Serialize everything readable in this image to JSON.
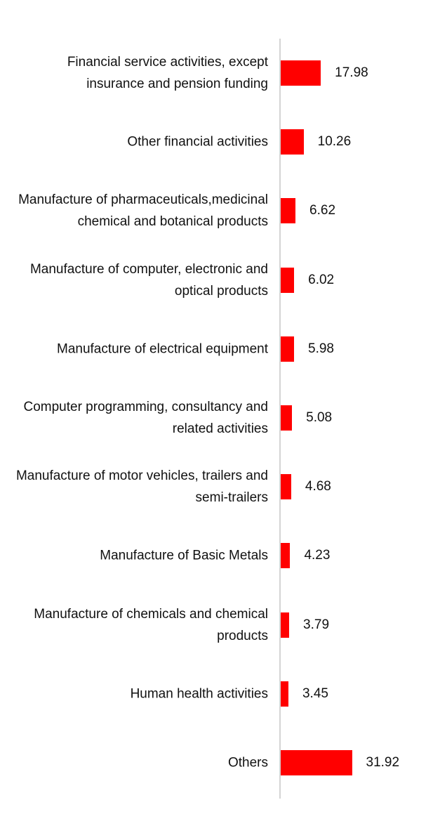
{
  "chart_data": {
    "type": "bar",
    "orientation": "horizontal",
    "title": "",
    "xlabel": "",
    "ylabel": "",
    "grid": false,
    "legend": "none",
    "bar_color": "#ff0000",
    "xlim": [
      0,
      35
    ],
    "categories": [
      "Financial service activities, except insurance and pension funding",
      "Other financial activities",
      "Manufacture of pharmaceuticals,medicinal chemical and botanical products",
      "Manufacture of computer, electronic and optical products",
      "Manufacture of electrical equipment",
      "Computer programming, consultancy and related activities",
      "Manufacture of motor vehicles, trailers and semi-trailers",
      "Manufacture of Basic Metals",
      "Manufacture of chemicals and chemical products",
      "Human health activities",
      "Others"
    ],
    "values": [
      17.98,
      10.26,
      6.62,
      6.02,
      5.98,
      5.08,
      4.68,
      4.23,
      3.79,
      3.45,
      31.92
    ],
    "value_labels": [
      "17.98",
      "10.26",
      "6.62",
      "6.02",
      "5.98",
      "5.08",
      "4.68",
      "4.23",
      "3.79",
      "3.45",
      "31.92"
    ]
  }
}
